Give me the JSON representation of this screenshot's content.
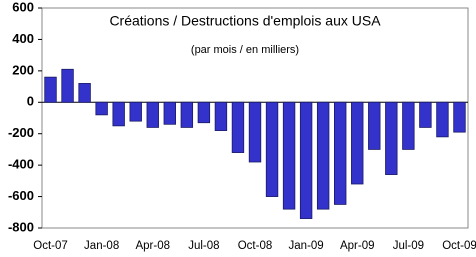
{
  "chart_data": {
    "type": "bar",
    "title": "Créations / Destructions d'emplois aux USA",
    "subtitle": "(par mois / en milliers)",
    "categories": [
      "Oct-07",
      null,
      null,
      "Jan-08",
      null,
      null,
      "Apr-08",
      null,
      null,
      "Jul-08",
      null,
      null,
      "Oct-08",
      null,
      null,
      "Jan-09",
      null,
      null,
      "Apr-09",
      null,
      null,
      "Jul-09",
      null,
      null,
      "Oct-09"
    ],
    "values": [
      160,
      210,
      120,
      -80,
      -150,
      -120,
      -160,
      -140,
      -160,
      -130,
      -180,
      -320,
      -380,
      -600,
      -680,
      -740,
      -680,
      -650,
      -520,
      -300,
      -460,
      -300,
      -160,
      -220,
      -190
    ],
    "color": "#3333cc",
    "ylim": [
      -800,
      600
    ],
    "yticks": [
      -800,
      -600,
      -400,
      -200,
      0,
      200,
      400,
      600
    ],
    "grid": false
  }
}
